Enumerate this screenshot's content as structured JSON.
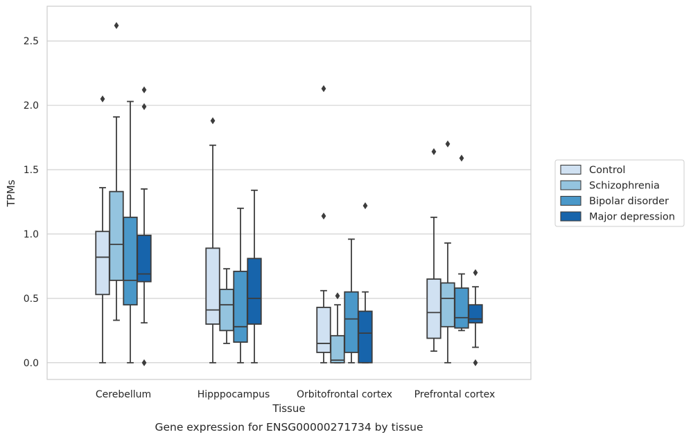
{
  "chart_data": {
    "type": "boxplot",
    "title": "",
    "caption": "Gene expression for ENSG00000271734 by tissue",
    "xlabel": "Tissue",
    "ylabel": "TPMs",
    "ylim": [
      -0.13,
      2.77
    ],
    "yticks": [
      "0.0",
      "0.5",
      "1.0",
      "1.5",
      "2.0",
      "2.5"
    ],
    "ytick_values": [
      0.0,
      0.5,
      1.0,
      1.5,
      2.0,
      2.5
    ],
    "grid": "horizontal",
    "legend_position": "right",
    "categories": [
      "Cerebellum",
      "Hipppocampus",
      "Orbitofrontal cortex",
      "Prefrontal cortex"
    ],
    "series": [
      {
        "name": "Control",
        "color": "#d0e1f2",
        "boxes": [
          {
            "whislo": 0.0,
            "q1": 0.53,
            "med": 0.82,
            "q3": 1.02,
            "whishi": 1.36,
            "fliers": [
              2.05
            ]
          },
          {
            "whislo": 0.0,
            "q1": 0.3,
            "med": 0.41,
            "q3": 0.89,
            "whishi": 1.69,
            "fliers": [
              1.88
            ]
          },
          {
            "whislo": 0.0,
            "q1": 0.08,
            "med": 0.15,
            "q3": 0.43,
            "whishi": 0.56,
            "fliers": [
              1.14,
              2.13
            ]
          },
          {
            "whislo": 0.09,
            "q1": 0.19,
            "med": 0.39,
            "q3": 0.65,
            "whishi": 1.13,
            "fliers": [
              1.64
            ]
          }
        ]
      },
      {
        "name": "Schizophrenia",
        "color": "#94c4df",
        "boxes": [
          {
            "whislo": 0.33,
            "q1": 0.64,
            "med": 0.92,
            "q3": 1.33,
            "whishi": 1.91,
            "fliers": [
              2.62
            ]
          },
          {
            "whislo": 0.15,
            "q1": 0.25,
            "med": 0.45,
            "q3": 0.57,
            "whishi": 0.73,
            "fliers": []
          },
          {
            "whislo": 0.0,
            "q1": 0.0,
            "med": 0.02,
            "q3": 0.21,
            "whishi": 0.45,
            "fliers": [
              0.52
            ]
          },
          {
            "whislo": 0.0,
            "q1": 0.28,
            "med": 0.5,
            "q3": 0.62,
            "whishi": 0.93,
            "fliers": [
              1.7
            ]
          }
        ]
      },
      {
        "name": "Bipolar disorder",
        "color": "#4a98c9",
        "boxes": [
          {
            "whislo": 0.0,
            "q1": 0.45,
            "med": 0.64,
            "q3": 1.13,
            "whishi": 2.03,
            "fliers": []
          },
          {
            "whislo": 0.0,
            "q1": 0.16,
            "med": 0.28,
            "q3": 0.71,
            "whishi": 1.2,
            "fliers": []
          },
          {
            "whislo": 0.0,
            "q1": 0.08,
            "med": 0.34,
            "q3": 0.55,
            "whishi": 0.96,
            "fliers": []
          },
          {
            "whislo": 0.25,
            "q1": 0.27,
            "med": 0.35,
            "q3": 0.58,
            "whishi": 0.69,
            "fliers": [
              1.59
            ]
          }
        ]
      },
      {
        "name": "Major depression",
        "color": "#1764ab",
        "boxes": [
          {
            "whislo": 0.31,
            "q1": 0.63,
            "med": 0.69,
            "q3": 0.99,
            "whishi": 1.35,
            "fliers": [
              0.0,
              1.99,
              2.12
            ]
          },
          {
            "whislo": 0.0,
            "q1": 0.3,
            "med": 0.5,
            "q3": 0.81,
            "whishi": 1.34,
            "fliers": []
          },
          {
            "whislo": 0.0,
            "q1": 0.0,
            "med": 0.23,
            "q3": 0.4,
            "whishi": 0.55,
            "fliers": [
              1.22
            ]
          },
          {
            "whislo": 0.12,
            "q1": 0.31,
            "med": 0.34,
            "q3": 0.45,
            "whishi": 0.59,
            "fliers": [
              0.0,
              0.7
            ]
          }
        ]
      }
    ]
  }
}
